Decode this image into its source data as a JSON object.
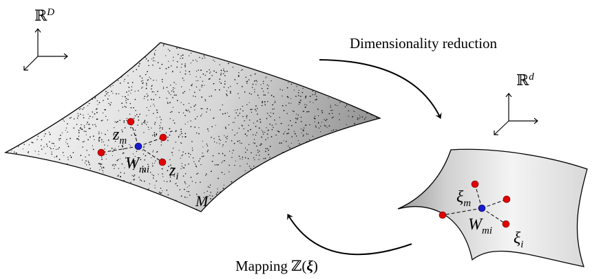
{
  "high_dim": {
    "space": "ℝ",
    "space_exp": "D",
    "manifold": "M",
    "center": "W",
    "center_sub": "mi",
    "neighbor": "z",
    "neighbor_sub": "m",
    "point": "z",
    "point_sub": "i"
  },
  "low_dim": {
    "space": "ℝ",
    "space_exp": "d",
    "center": "W",
    "center_sub": "mi",
    "neighbor": "ξ",
    "neighbor_sub": "m",
    "point": "ξ",
    "point_sub": "i"
  },
  "arrows": {
    "forward_label": "Dimensionality reduction",
    "backward_label_text": "Mapping ℤ(",
    "backward_label_var": "ξ",
    "backward_label_close": ")"
  },
  "colors": {
    "sample_point": "#e00000",
    "center_point": "#1a1acc",
    "manifold_light": "#f6f6f6",
    "manifold_dark": "#8c8c8c"
  }
}
